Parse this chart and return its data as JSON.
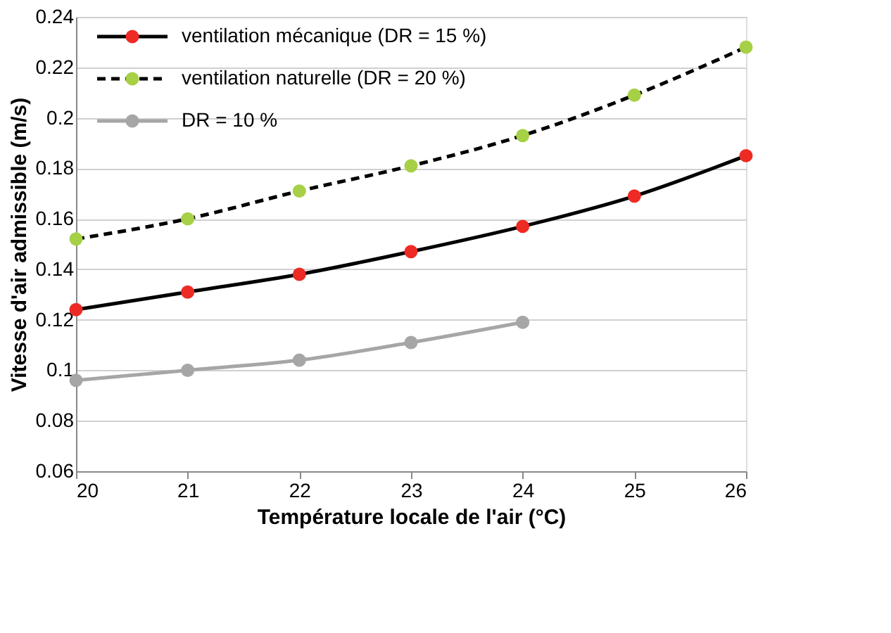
{
  "chart_data": {
    "type": "line",
    "xlabel": "Température locale de l'air (°C)",
    "ylabel": "Vitesse d'air admissible (m/s)",
    "x": [
      20,
      21,
      22,
      23,
      24,
      25,
      26
    ],
    "xlim": [
      20,
      26
    ],
    "xticks": [
      20,
      21,
      22,
      23,
      24,
      25,
      26
    ],
    "ylim": [
      0.06,
      0.24
    ],
    "yticks": [
      0.06,
      0.08,
      0.1,
      0.12,
      0.14,
      0.16,
      0.18,
      0.2,
      0.22,
      0.24
    ],
    "grid": "y",
    "legend": "top left",
    "marker": "circle",
    "series": [
      {
        "name": "ventilation mécanique (DR = 15 %)",
        "color": "#000000",
        "colors": [
          "#ee2a24",
          "#ee2a24",
          "#ee2a24",
          "#ee2a24",
          "#ee2a24",
          "#ee2a24",
          "#ee2a24"
        ],
        "line_style": "solid",
        "values": [
          0.124,
          0.131,
          0.138,
          0.147,
          0.157,
          0.169,
          0.185
        ]
      },
      {
        "name": "ventilation naturelle (DR = 20 %)",
        "color": "#000000",
        "colors": [
          "#a6d045",
          "#a6d045",
          "#a6d045",
          "#a6d045",
          "#a6d045",
          "#a6d045",
          "#a6d045"
        ],
        "line_style": "dashed",
        "values": [
          0.152,
          0.16,
          0.171,
          0.181,
          0.193,
          0.209,
          0.228
        ]
      },
      {
        "name": "DR = 10 %",
        "color": "#a6a6a6",
        "colors": [
          "#a6a6a6",
          "#a6a6a6",
          "#a6a6a6",
          "#a6a6a6",
          "#a6a6a6"
        ],
        "line_style": "solid",
        "x": [
          20,
          21,
          22,
          23,
          24
        ],
        "values": [
          0.096,
          0.1,
          0.104,
          0.111,
          0.119
        ]
      }
    ]
  }
}
